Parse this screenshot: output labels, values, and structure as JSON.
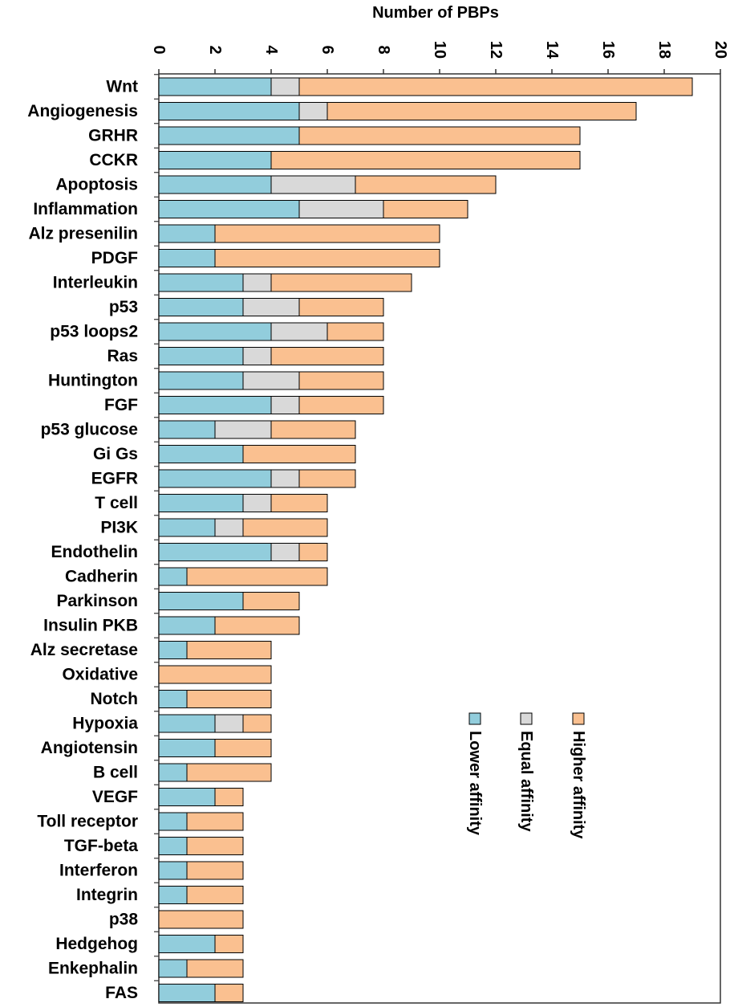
{
  "chart_data": {
    "type": "bar",
    "orientation": "horizontal",
    "stacked": true,
    "xlabel": "Number of PBPs",
    "xlim": [
      0,
      20
    ],
    "xticks": [
      0,
      2,
      4,
      6,
      8,
      10,
      12,
      14,
      16,
      18,
      20
    ],
    "legend_position": "right",
    "categories": [
      "Wnt",
      "Angiogenesis",
      "GRHR",
      "CCKR",
      "Apoptosis",
      "Inflammation",
      "Alz presenilin",
      "PDGF",
      "Interleukin",
      "p53",
      "p53 loops2",
      "Ras",
      "Huntington",
      "FGF",
      "p53 glucose",
      "Gi Gs",
      "EGFR",
      "T cell",
      "PI3K",
      "Endothelin",
      "Cadherin",
      "Parkinson",
      "Insulin PKB",
      "Alz secretase",
      "Oxidative",
      "Notch",
      "Hypoxia",
      "Angiotensin",
      "B cell",
      "VEGF",
      "Toll receptor",
      "TGF-beta",
      "Interferon",
      "Integrin",
      "p38",
      "Hedgehog",
      "Enkephalin",
      "FAS"
    ],
    "series": [
      {
        "name": "Lower affinity",
        "color": "#92CDDC",
        "values": [
          4,
          5,
          5,
          4,
          4,
          5,
          2,
          2,
          3,
          3,
          4,
          3,
          3,
          4,
          2,
          3,
          4,
          3,
          2,
          4,
          1,
          3,
          2,
          1,
          0,
          1,
          2,
          2,
          1,
          2,
          1,
          1,
          1,
          1,
          0,
          2,
          1,
          2
        ]
      },
      {
        "name": "Equal affinity",
        "color": "#D9D9D9",
        "values": [
          1,
          1,
          0,
          0,
          3,
          3,
          0,
          0,
          1,
          2,
          2,
          1,
          2,
          1,
          2,
          0,
          1,
          1,
          1,
          1,
          0,
          0,
          0,
          0,
          0,
          0,
          1,
          0,
          0,
          0,
          0,
          0,
          0,
          0,
          0,
          0,
          0,
          0
        ]
      },
      {
        "name": "Higher affinity",
        "color": "#FAC090",
        "values": [
          14,
          11,
          10,
          11,
          5,
          3,
          8,
          8,
          5,
          3,
          2,
          4,
          3,
          3,
          3,
          4,
          2,
          2,
          3,
          1,
          5,
          2,
          3,
          3,
          4,
          3,
          1,
          2,
          3,
          1,
          2,
          2,
          2,
          2,
          3,
          1,
          2,
          1
        ]
      }
    ]
  }
}
